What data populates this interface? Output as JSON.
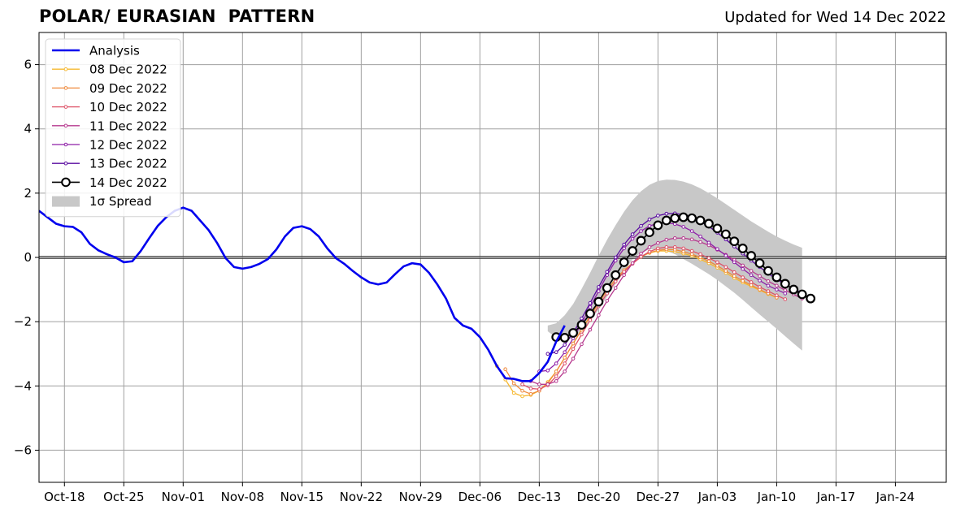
{
  "chart_data": {
    "type": "line",
    "title": "POLAR/ EURASIAN  PATTERN",
    "subtitle": "Updated for Wed 14 Dec 2022",
    "xlabel": "",
    "ylabel": "",
    "ylim": [
      -7,
      7
    ],
    "yticks": [
      -6,
      -4,
      -2,
      0,
      2,
      4,
      6
    ],
    "ytick_labels": [
      "−6",
      "−4",
      "−2",
      "0",
      "2",
      "4",
      "6"
    ],
    "xlim": [
      "2022-10-15",
      "2023-01-30"
    ],
    "xticks": [
      "2022-10-18",
      "2022-10-25",
      "2022-11-01",
      "2022-11-08",
      "2022-11-15",
      "2022-11-22",
      "2022-11-29",
      "2022-12-06",
      "2022-12-13",
      "2022-12-20",
      "2022-12-27",
      "2023-01-03",
      "2023-01-10",
      "2023-01-17",
      "2023-01-24"
    ],
    "xtick_labels": [
      "Oct-18",
      "Oct-25",
      "Nov-01",
      "Nov-08",
      "Nov-15",
      "Nov-22",
      "Nov-29",
      "Dec-06",
      "Dec-13",
      "Dec-20",
      "Dec-27",
      "Jan-03",
      "Jan-10",
      "Jan-17",
      "Jan-24"
    ],
    "grid": true,
    "legend_position": "top-left",
    "analysis": {
      "name": "Analysis",
      "color": "#0000ee",
      "x_start": "2022-10-15",
      "values": [
        1.45,
        1.25,
        1.05,
        0.97,
        0.95,
        0.78,
        0.42,
        0.22,
        0.1,
        0.0,
        -0.15,
        -0.12,
        0.2,
        0.6,
        0.98,
        1.25,
        1.45,
        1.55,
        1.45,
        1.15,
        0.85,
        0.45,
        -0.02,
        -0.3,
        -0.35,
        -0.3,
        -0.2,
        -0.05,
        0.25,
        0.65,
        0.92,
        0.97,
        0.88,
        0.65,
        0.28,
        -0.02,
        -0.2,
        -0.42,
        -0.62,
        -0.78,
        -0.84,
        -0.78,
        -0.52,
        -0.28,
        -0.18,
        -0.22,
        -0.48,
        -0.85,
        -1.28,
        -1.88,
        -2.12,
        -2.22,
        -2.48,
        -2.88,
        -3.38,
        -3.76,
        -3.78,
        -3.85,
        -3.85,
        -3.6,
        -3.25,
        -2.62,
        -2.12
      ]
    },
    "forecasts": [
      {
        "name": "08 Dec 2022",
        "color": "#f6b830",
        "x_start": "2022-12-08",
        "values": [
          -3.38,
          -3.8,
          -4.22,
          -4.32,
          -4.28,
          -4.15,
          -3.88,
          -3.55,
          -3.12,
          -2.68,
          -2.25,
          -1.85,
          -1.42,
          -1.02,
          -0.68,
          -0.4,
          -0.18,
          0.02,
          0.14,
          0.2,
          0.2,
          0.18,
          0.12,
          0.05,
          -0.06,
          -0.18,
          -0.32,
          -0.48,
          -0.64,
          -0.78,
          -0.9,
          -1.02,
          -1.14,
          -1.25
        ]
      },
      {
        "name": "09 Dec 2022",
        "color": "#ef8a3c",
        "x_start": "2022-12-09",
        "values": [
          -3.48,
          -3.92,
          -4.15,
          -4.25,
          -4.15,
          -3.92,
          -3.55,
          -3.12,
          -2.68,
          -2.25,
          -1.82,
          -1.42,
          -1.02,
          -0.68,
          -0.4,
          -0.18,
          0.02,
          0.15,
          0.22,
          0.25,
          0.24,
          0.18,
          0.1,
          0.0,
          -0.12,
          -0.26,
          -0.42,
          -0.58,
          -0.73,
          -0.86,
          -1.0,
          -1.12,
          -1.25
        ]
      },
      {
        "name": "10 Dec 2022",
        "color": "#de5268",
        "x_start": "2022-12-11",
        "values": [
          -3.95,
          -4.08,
          -4.1,
          -3.98,
          -3.7,
          -3.3,
          -2.85,
          -2.4,
          -1.95,
          -1.52,
          -1.12,
          -0.75,
          -0.45,
          -0.2,
          0.02,
          0.18,
          0.28,
          0.32,
          0.32,
          0.28,
          0.2,
          0.1,
          -0.02,
          -0.15,
          -0.3,
          -0.46,
          -0.62,
          -0.77,
          -0.92,
          -1.05,
          -1.18,
          -1.3
        ]
      },
      {
        "name": "11 Dec 2022",
        "color": "#b6388e",
        "x_start": "2022-12-12",
        "values": [
          -3.85,
          -3.95,
          -3.95,
          -3.85,
          -3.55,
          -3.15,
          -2.7,
          -2.25,
          -1.8,
          -1.35,
          -0.95,
          -0.55,
          -0.18,
          0.12,
          0.32,
          0.45,
          0.55,
          0.6,
          0.6,
          0.56,
          0.48,
          0.38,
          0.24,
          0.08,
          -0.08,
          -0.25,
          -0.42,
          -0.58,
          -0.74,
          -0.88,
          -1.02,
          -1.15,
          -1.28
        ]
      },
      {
        "name": "12 Dec 2022",
        "color": "#8e1fa8",
        "x_start": "2022-12-13",
        "values": [
          -3.55,
          -3.52,
          -3.3,
          -2.95,
          -2.52,
          -2.05,
          -1.55,
          -1.05,
          -0.55,
          -0.1,
          0.28,
          0.58,
          0.82,
          0.98,
          1.06,
          1.08,
          1.04,
          0.95,
          0.82,
          0.65,
          0.46,
          0.26,
          0.06,
          -0.15,
          -0.36,
          -0.55,
          -0.72,
          -0.88,
          -1.0,
          -1.12
        ]
      },
      {
        "name": "13 Dec 2022",
        "color": "#5a0ca0",
        "x_start": "2022-12-14",
        "values": [
          -3.0,
          -2.95,
          -2.72,
          -2.35,
          -1.9,
          -1.42,
          -0.92,
          -0.45,
          0.0,
          0.4,
          0.72,
          0.98,
          1.18,
          1.3,
          1.36,
          1.37,
          1.33,
          1.25,
          1.12,
          0.96,
          0.77,
          0.56,
          0.34,
          0.12,
          -0.1,
          -0.3,
          -0.5,
          -0.68,
          -0.84,
          -0.98,
          -1.1
        ]
      },
      {
        "name": "14 Dec 2022",
        "color": "#000000",
        "x_start": "2022-12-15",
        "values": [
          -2.48,
          -2.5,
          -2.35,
          -2.1,
          -1.75,
          -1.38,
          -0.95,
          -0.55,
          -0.15,
          0.2,
          0.52,
          0.78,
          1.0,
          1.15,
          1.22,
          1.25,
          1.22,
          1.15,
          1.05,
          0.9,
          0.72,
          0.5,
          0.28,
          0.05,
          -0.18,
          -0.42,
          -0.62,
          -0.82,
          -1.0,
          -1.15,
          -1.28
        ]
      }
    ],
    "spread": {
      "name": "1σ Spread",
      "color": "#c8c8c8",
      "x_start": "2022-12-14",
      "upper": [
        -2.12,
        -2.05,
        -1.8,
        -1.45,
        -0.98,
        -0.48,
        0.05,
        0.55,
        1.0,
        1.42,
        1.78,
        2.06,
        2.26,
        2.38,
        2.42,
        2.41,
        2.36,
        2.27,
        2.15,
        2.0,
        1.84,
        1.66,
        1.48,
        1.3,
        1.12,
        0.96,
        0.8,
        0.65,
        0.52,
        0.4,
        0.3
      ],
      "lower": [
        -2.3,
        -2.5,
        -2.58,
        -2.52,
        -2.3,
        -1.98,
        -1.62,
        -1.22,
        -0.82,
        -0.42,
        -0.06,
        0.15,
        0.25,
        0.25,
        0.2,
        0.1,
        -0.05,
        -0.2,
        -0.36,
        -0.52,
        -0.7,
        -0.9,
        -1.1,
        -1.32,
        -1.55,
        -1.78,
        -2.0,
        -2.22,
        -2.45,
        -2.68,
        -2.9
      ]
    }
  }
}
